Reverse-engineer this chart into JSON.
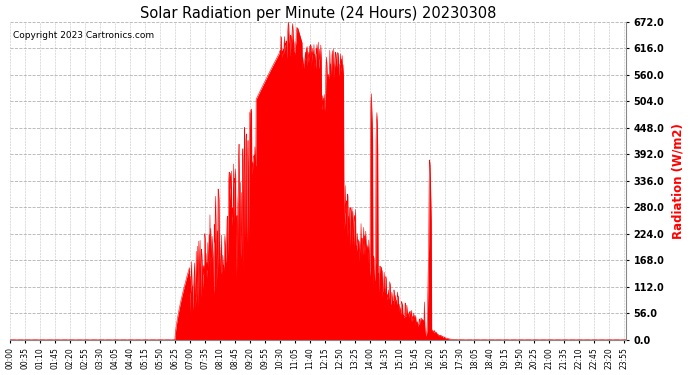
{
  "title": "Solar Radiation per Minute (24 Hours) 20230308",
  "ylabel": "Radiation (W/m2)",
  "copyright": "Copyright 2023 Cartronics.com",
  "background_color": "#ffffff",
  "fill_color": "#ff0000",
  "line_color": "#ff0000",
  "dashed_line_color": "#ff0000",
  "grid_color": "#aaaaaa",
  "ylabel_color": "#ff0000",
  "title_color": "#000000",
  "ylim": [
    0.0,
    672.0
  ],
  "yticks": [
    0.0,
    56.0,
    112.0,
    168.0,
    224.0,
    280.0,
    336.0,
    392.0,
    448.0,
    504.0,
    560.0,
    616.0,
    672.0
  ],
  "total_minutes": 1440,
  "figsize": [
    6.9,
    3.75
  ],
  "dpi": 100
}
